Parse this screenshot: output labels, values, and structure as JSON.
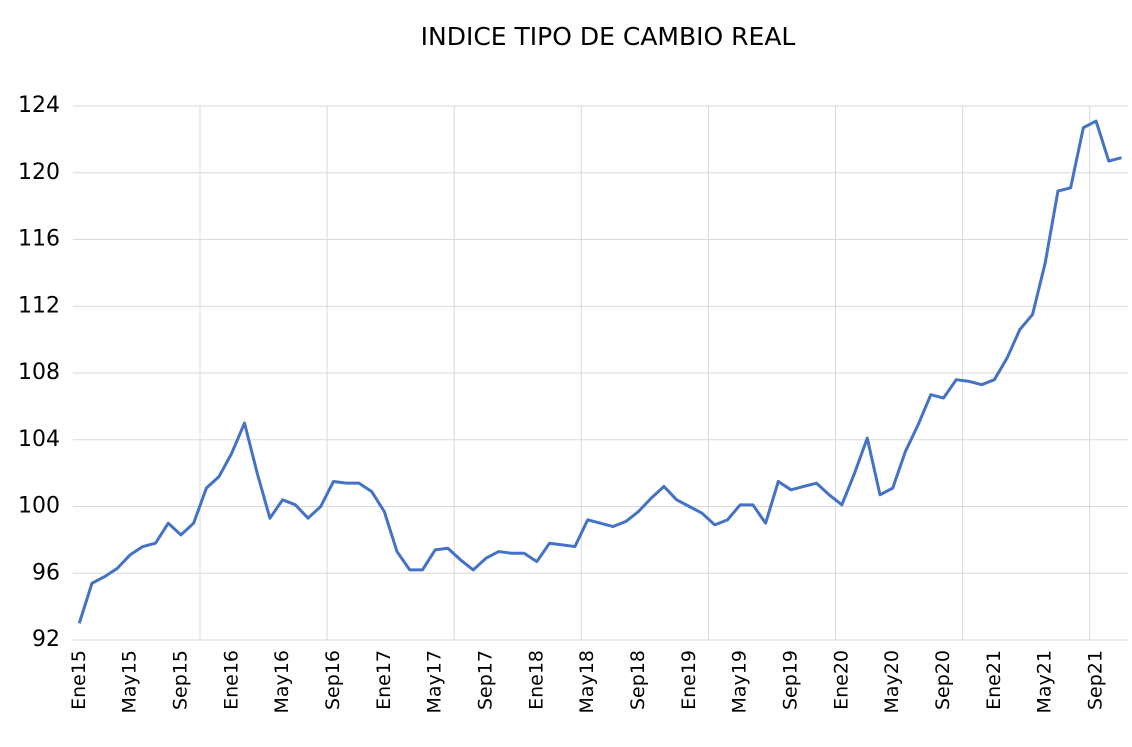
{
  "chart_data": {
    "type": "line",
    "title": "INDICE TIPO DE CAMBIO REAL",
    "categories": [
      "Ene15",
      null,
      null,
      null,
      "May15",
      null,
      null,
      null,
      "Sep15",
      null,
      null,
      null,
      "Ene16",
      null,
      null,
      null,
      "May16",
      null,
      null,
      null,
      "Sep16",
      null,
      null,
      null,
      "Ene17",
      null,
      null,
      null,
      "May17",
      null,
      null,
      null,
      "Sep17",
      null,
      null,
      null,
      "Ene18",
      null,
      null,
      null,
      "May18",
      null,
      null,
      null,
      "Sep18",
      null,
      null,
      null,
      "Ene19",
      null,
      null,
      null,
      "May19",
      null,
      null,
      null,
      "Sep19",
      null,
      null,
      null,
      "Ene20",
      null,
      null,
      null,
      "May20",
      null,
      null,
      null,
      "Sep20",
      null,
      null,
      null,
      "Ene21",
      null,
      null,
      null,
      "May21",
      null,
      null,
      null,
      "Sep21",
      null,
      null
    ],
    "series": [
      {
        "color": "#4472c4",
        "values": [
          93.0,
          95.4,
          95.8,
          96.3,
          97.1,
          97.6,
          97.8,
          99.0,
          98.3,
          99.0,
          101.1,
          101.8,
          103.2,
          105.0,
          102.0,
          99.3,
          100.4,
          100.1,
          99.3,
          100.0,
          101.5,
          101.4,
          101.4,
          100.9,
          99.7,
          97.3,
          96.2,
          96.2,
          97.4,
          97.5,
          96.8,
          96.2,
          96.9,
          97.3,
          97.2,
          97.2,
          96.7,
          97.8,
          97.7,
          97.6,
          99.2,
          99.0,
          98.8,
          99.1,
          99.7,
          100.5,
          101.2,
          100.4,
          100.0,
          99.6,
          98.9,
          99.2,
          100.1,
          100.1,
          99.0,
          101.5,
          101.0,
          101.2,
          101.4,
          100.7,
          100.1,
          102.0,
          104.1,
          100.7,
          101.1,
          103.3,
          104.9,
          106.7,
          106.5,
          107.6,
          107.5,
          107.3,
          107.6,
          108.9,
          110.6,
          111.5,
          114.6,
          118.9,
          119.1,
          122.7,
          123.1,
          120.7,
          120.9
        ]
      }
    ],
    "ylim": [
      92,
      124
    ],
    "yticks": [
      92,
      96,
      100,
      104,
      108,
      112,
      116,
      120,
      124
    ],
    "grid": true
  }
}
